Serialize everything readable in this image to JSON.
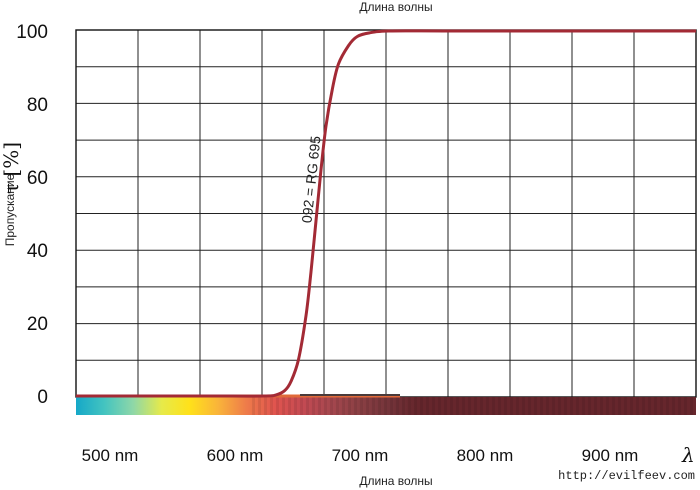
{
  "chart_data": {
    "type": "line",
    "title": "Длина волны",
    "xlabel": "Длина волны",
    "ylabel": "Пропускание",
    "ylabel_symbol": "τ [%]",
    "x_tick_labels": [
      "500 nm",
      "600 nm",
      "700 nm",
      "800 nm",
      "900 nm"
    ],
    "x_axis_symbol": "λ",
    "y_tick_labels": [
      "0",
      "20",
      "40",
      "60",
      "80",
      "100"
    ],
    "xlim": [
      450,
      1000
    ],
    "ylim": [
      0,
      100
    ],
    "grid": true,
    "series": [
      {
        "name": "092 = RG 695",
        "color": "#a32a35",
        "x": [
          450,
          600,
          650,
          660,
          667,
          672,
          678,
          684,
          688,
          692,
          696,
          700,
          705,
          710,
          718,
          725,
          735,
          750,
          800,
          900,
          1000
        ],
        "y": [
          0,
          0,
          0,
          0.3,
          1.5,
          4,
          10,
          22,
          34,
          48,
          62,
          74,
          84,
          91,
          96,
          98.5,
          99.5,
          100,
          100,
          100,
          100
        ]
      }
    ],
    "spectrum_colors": [
      "#15a8c8",
      "#44c4c0",
      "#8ed7a8",
      "#e6ea4a",
      "#ffe11a",
      "#f9b43a",
      "#ee7b4a",
      "#e0544e",
      "#c34a52",
      "#a4474e",
      "#8a3f43",
      "#74343a",
      "#66262c"
    ],
    "spectrum_ticks": [
      "0",
      "1"
    ]
  },
  "watermark": "http://evilfeev.com"
}
